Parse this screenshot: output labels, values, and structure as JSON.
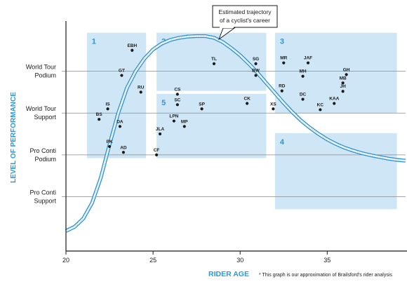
{
  "chart_data": {
    "type": "scatter",
    "title": "",
    "xlabel": "RIDER AGE",
    "ylabel": "LEVEL OF PERFORMANCE",
    "xlim": [
      20,
      39.5
    ],
    "x_ticks": [
      20,
      25,
      30,
      35
    ],
    "y_levels": [
      {
        "label_line1": "World Tour",
        "label_line2": "Podium",
        "value": 4
      },
      {
        "label_line1": "World Tour",
        "label_line2": "Support",
        "value": 3
      },
      {
        "label_line1": "Pro Conti",
        "label_line2": "Podium",
        "value": 2
      },
      {
        "label_line1": "Pro Conti",
        "label_line2": "Support",
        "value": 1
      }
    ],
    "ylim": [
      -0.3,
      5.1
    ],
    "grid": "horizontal",
    "footnote": "* This graph is our approximation of Brailsford's rider analysis",
    "callout": {
      "line1": "Estimated trajectory",
      "line2": "of a cyclist's career"
    },
    "zones": [
      {
        "label": "1",
        "x0": 21.2,
        "x1": 24.6,
        "y0": 1.92,
        "y1": 4.92
      },
      {
        "label": "2",
        "x0": 25.2,
        "x1": 31.5,
        "y0": 3.53,
        "y1": 4.92
      },
      {
        "label": "3",
        "x0": 32.0,
        "x1": 39.0,
        "y0": 3.0,
        "y1": 4.92
      },
      {
        "label": "4",
        "x0": 32.0,
        "x1": 39.0,
        "y0": 0.7,
        "y1": 2.52
      },
      {
        "label": "5",
        "x0": 25.2,
        "x1": 31.5,
        "y0": 1.92,
        "y1": 3.46
      }
    ],
    "trajectory": [
      [
        20.0,
        0.18
      ],
      [
        20.5,
        0.28
      ],
      [
        21.0,
        0.48
      ],
      [
        21.5,
        0.85
      ],
      [
        22.0,
        1.45
      ],
      [
        22.5,
        2.25
      ],
      [
        23.0,
        3.0
      ],
      [
        23.5,
        3.6
      ],
      [
        24.0,
        4.0
      ],
      [
        24.5,
        4.3
      ],
      [
        25.0,
        4.52
      ],
      [
        25.5,
        4.66
      ],
      [
        26.0,
        4.75
      ],
      [
        26.5,
        4.8
      ],
      [
        27.0,
        4.83
      ],
      [
        27.5,
        4.84
      ],
      [
        28.0,
        4.84
      ],
      [
        28.5,
        4.8
      ],
      [
        29.0,
        4.7
      ],
      [
        29.5,
        4.55
      ],
      [
        30.0,
        4.38
      ],
      [
        30.5,
        4.18
      ],
      [
        31.0,
        3.96
      ],
      [
        31.5,
        3.72
      ],
      [
        32.0,
        3.48
      ],
      [
        32.5,
        3.24
      ],
      [
        33.0,
        3.02
      ],
      [
        33.5,
        2.82
      ],
      [
        34.0,
        2.65
      ],
      [
        34.5,
        2.5
      ],
      [
        35.0,
        2.37
      ],
      [
        35.5,
        2.26
      ],
      [
        36.0,
        2.17
      ],
      [
        36.5,
        2.1
      ],
      [
        37.0,
        2.04
      ],
      [
        37.5,
        1.99
      ],
      [
        38.0,
        1.95
      ],
      [
        38.5,
        1.91
      ],
      [
        39.0,
        1.88
      ],
      [
        39.5,
        1.86
      ]
    ],
    "points": [
      {
        "label": "EBH",
        "x": 23.8,
        "y": 4.5
      },
      {
        "label": "GT",
        "x": 23.2,
        "y": 3.9
      },
      {
        "label": "RU",
        "x": 24.3,
        "y": 3.5
      },
      {
        "label": "IS",
        "x": 22.4,
        "y": 3.1
      },
      {
        "label": "BS",
        "x": 21.9,
        "y": 2.85
      },
      {
        "label": "DA",
        "x": 23.1,
        "y": 2.68
      },
      {
        "label": "PK",
        "x": 22.5,
        "y": 2.2
      },
      {
        "label": "AD",
        "x": 23.3,
        "y": 2.06
      },
      {
        "label": "TL",
        "x": 28.5,
        "y": 4.18
      },
      {
        "label": "SG",
        "x": 30.9,
        "y": 4.18
      },
      {
        "label": "BW",
        "x": 30.9,
        "y": 3.9
      },
      {
        "label": "CS",
        "x": 26.4,
        "y": 3.45
      },
      {
        "label": "SC",
        "x": 26.4,
        "y": 3.2
      },
      {
        "label": "SP",
        "x": 27.8,
        "y": 3.1
      },
      {
        "label": "CK",
        "x": 30.4,
        "y": 3.23
      },
      {
        "label": "LPN",
        "x": 26.2,
        "y": 2.81
      },
      {
        "label": "MP",
        "x": 26.8,
        "y": 2.68
      },
      {
        "label": "JLA",
        "x": 25.4,
        "y": 2.5
      },
      {
        "label": "CF",
        "x": 25.2,
        "y": 2.0
      },
      {
        "label": "MR",
        "x": 32.5,
        "y": 4.2
      },
      {
        "label": "JAF",
        "x": 33.9,
        "y": 4.2
      },
      {
        "label": "MH",
        "x": 33.6,
        "y": 3.88
      },
      {
        "label": "GH",
        "x": 36.1,
        "y": 3.92
      },
      {
        "label": "MB",
        "x": 35.9,
        "y": 3.72
      },
      {
        "label": "JH",
        "x": 35.9,
        "y": 3.52
      },
      {
        "label": "RD",
        "x": 32.4,
        "y": 3.53
      },
      {
        "label": "DC",
        "x": 33.6,
        "y": 3.33
      },
      {
        "label": "KAA",
        "x": 35.4,
        "y": 3.23
      },
      {
        "label": "XS",
        "x": 31.9,
        "y": 3.1
      },
      {
        "label": "KC",
        "x": 34.6,
        "y": 3.08
      }
    ]
  }
}
